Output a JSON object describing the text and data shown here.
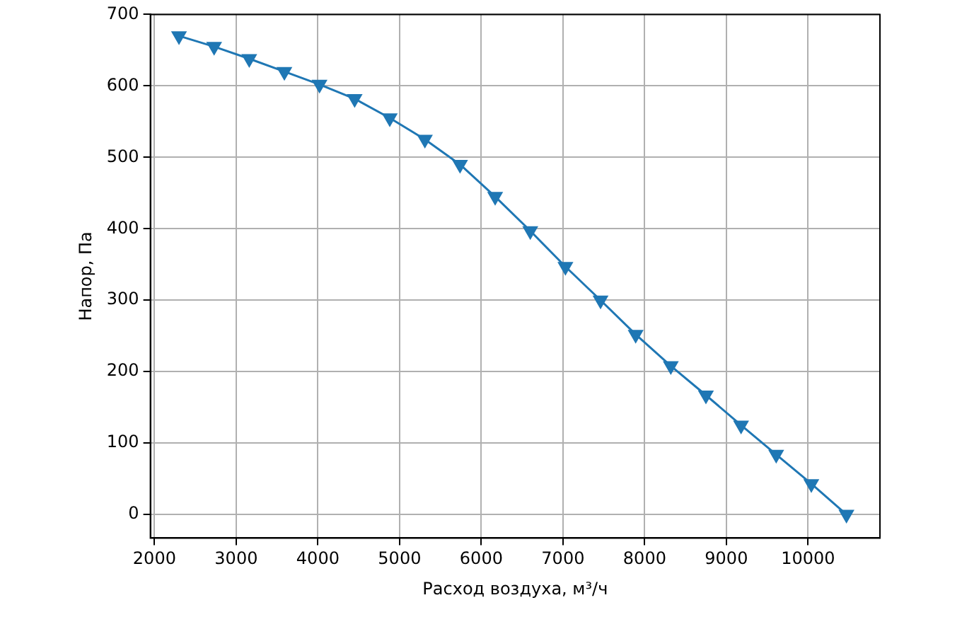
{
  "chart_data": {
    "type": "line",
    "xlabel": "Расход воздуха, м³/ч",
    "ylabel": "Напор, Па",
    "x": [
      2300,
      2730,
      3160,
      3590,
      4020,
      4450,
      4880,
      5310,
      5740,
      6170,
      6600,
      7030,
      7460,
      7890,
      8320,
      8750,
      9180,
      9610,
      10040,
      10470
    ],
    "series": [
      {
        "color": "#1f77b4",
        "values": [
          670,
          655,
          638,
          620,
          602,
          582,
          555,
          525,
          490,
          445,
          397,
          347,
          300,
          252,
          208,
          167,
          125,
          84,
          43,
          0
        ]
      }
    ],
    "xlim": [
      1950,
      10880
    ],
    "ylim": [
      -33,
      700
    ],
    "xticks": [
      2000,
      3000,
      4000,
      5000,
      6000,
      7000,
      8000,
      9000,
      10000
    ],
    "yticks": [
      0,
      100,
      200,
      300,
      400,
      500,
      600,
      700
    ],
    "grid": true,
    "marker": "triangle",
    "line_style": "solid"
  }
}
